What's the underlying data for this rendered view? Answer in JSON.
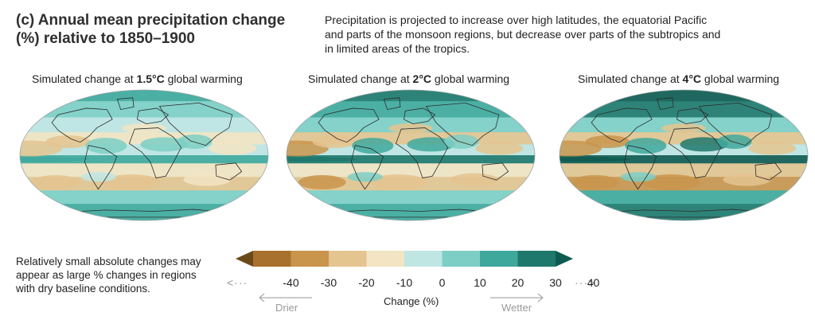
{
  "title": "(c) Annual mean precipitation change (%) relative to 1850–1900",
  "description": "Precipitation is projected to increase over high latitudes, the equatorial Pacific and parts of the monsoon regions, but decrease over parts of the subtropics and in limited areas of the tropics.",
  "maps": [
    {
      "label_prefix": "Simulated change at ",
      "level": "1.5°C",
      "label_suffix": " global warming",
      "intensity": 0.55
    },
    {
      "label_prefix": "Simulated change at ",
      "level": "2°C",
      "label_suffix": " global warming",
      "intensity": 0.75
    },
    {
      "label_prefix": "Simulated change at ",
      "level": "4°C",
      "label_suffix": " global warming",
      "intensity": 1.0
    }
  ],
  "note": "Relatively small absolute changes may appear as large % changes in regions with dry baseline conditions.",
  "colorbar": {
    "ticks": [
      "-40",
      "-30",
      "-20",
      "-10",
      "0",
      "10",
      "20",
      "30",
      "40"
    ],
    "colors": [
      "#6b4a1a",
      "#a9712e",
      "#c9954c",
      "#e4c48f",
      "#f3e4c3",
      "#bfe6e3",
      "#7dcfc6",
      "#3fa89c",
      "#1e786c",
      "#0e5a50"
    ],
    "label": "Change (%)",
    "drier_label": "Drier",
    "wetter_label": "Wetter"
  }
}
